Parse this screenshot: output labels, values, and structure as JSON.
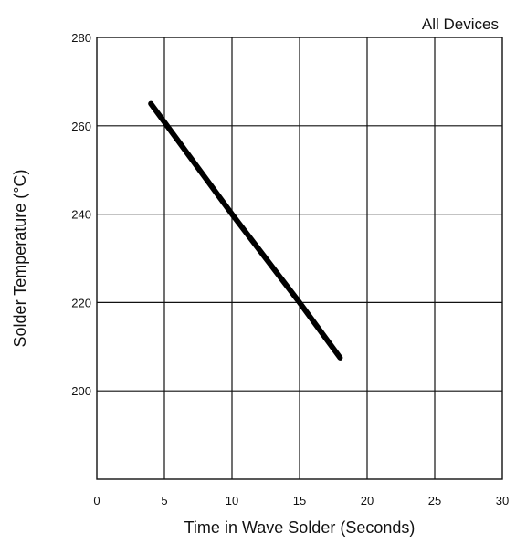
{
  "chart_data": {
    "type": "line",
    "xlabel": "Time in Wave Solder (Seconds)",
    "ylabel": "Solder Temperature (°C)",
    "xlim": [
      0,
      30
    ],
    "ylim": [
      180,
      280
    ],
    "x_ticks": [
      0,
      5,
      10,
      15,
      20,
      25,
      30
    ],
    "x_tick_labels": [
      "0",
      "5",
      "10",
      "15",
      "20",
      "25",
      "30"
    ],
    "y_ticks": [
      200,
      220,
      240,
      260,
      280
    ],
    "y_tick_labels": [
      "200",
      "220",
      "240",
      "260",
      "280"
    ],
    "grid": true,
    "legend_position": "top-right",
    "series": [
      {
        "name": "All Devices",
        "color": "#000000",
        "x": [
          4,
          10,
          15,
          18
        ],
        "y": [
          265,
          240,
          220,
          207.5
        ]
      }
    ]
  }
}
